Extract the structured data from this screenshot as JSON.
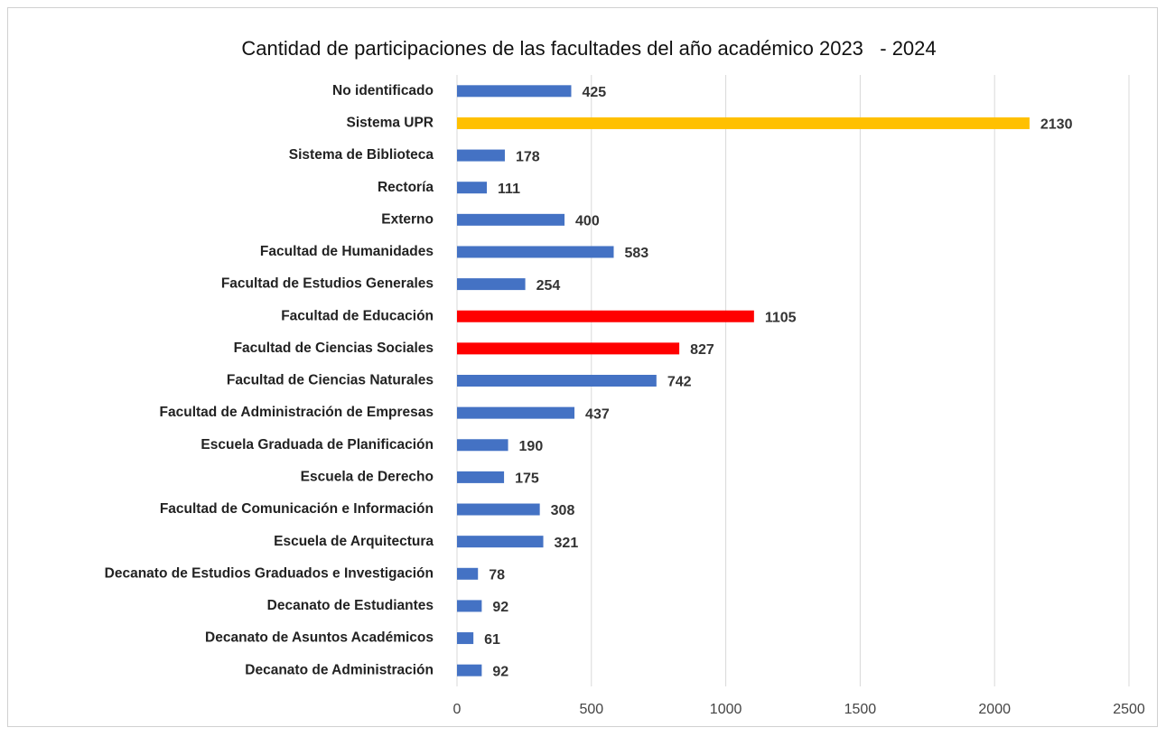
{
  "chart_data": {
    "type": "bar",
    "orientation": "horizontal",
    "title": "Cantidad de participaciones de las facultades del año académico 2023   - 2024",
    "categories": [
      "No identificado",
      "Sistema UPR",
      "Sistema de Biblioteca",
      "Rectoría",
      "Externo",
      "Facultad de Humanidades",
      "Facultad de Estudios Generales",
      "Facultad de Educación",
      "Facultad de Ciencias Sociales",
      "Facultad de Ciencias Naturales",
      "Facultad de Administración de Empresas",
      "Escuela Graduada de Planificación",
      "Escuela de Derecho",
      "Facultad de Comunicación e Información",
      "Escuela de Arquitectura",
      "Decanato de Estudios Graduados e Investigación",
      "Decanato de Estudiantes",
      "Decanato de Asuntos Académicos",
      "Decanato de Administración"
    ],
    "values": [
      425,
      2130,
      178,
      111,
      400,
      583,
      254,
      1105,
      827,
      742,
      437,
      190,
      175,
      308,
      321,
      78,
      92,
      61,
      92
    ],
    "colors": [
      "#4472c4",
      "#ffc000",
      "#4472c4",
      "#4472c4",
      "#4472c4",
      "#4472c4",
      "#4472c4",
      "#ff0000",
      "#ff0000",
      "#4472c4",
      "#4472c4",
      "#4472c4",
      "#4472c4",
      "#4472c4",
      "#4472c4",
      "#4472c4",
      "#4472c4",
      "#4472c4",
      "#4472c4"
    ],
    "xlim": [
      0,
      2500
    ],
    "xticks": [
      0,
      500,
      1000,
      1500,
      2000,
      2500
    ],
    "grid": true
  }
}
